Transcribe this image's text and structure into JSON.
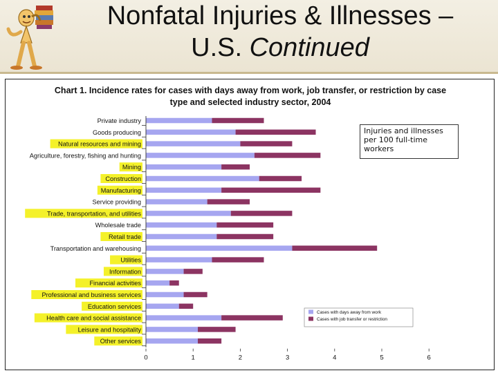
{
  "slide": {
    "title_main": "Nonfatal Injuries & Illnesses –",
    "title_line2_plain": "U.S.",
    "title_line2_italic": "Continued"
  },
  "annotation": "Injuries and illnesses per 100 full-time workers",
  "colors": {
    "bar_away": "#a6a6f0",
    "bar_transfer": "#8c3462",
    "highlight": "#f4f12a"
  },
  "chart_data": {
    "type": "bar",
    "orientation": "horizontal",
    "stacked": true,
    "title": "Chart 1. Incidence rates for cases with days away from work, job transfer, or restriction by case type and selected industry sector, 2004",
    "categories": [
      "Private industry",
      "Goods producing",
      "Natural resources and mining",
      "Agriculture, forestry, fishing and hunting",
      "Mining",
      "Construction",
      "Manufacturing",
      "Service providing",
      "Trade, transportation, and utilities",
      "Wholesale trade",
      "Retail trade",
      "Transportation and warehousing",
      "Utilities",
      "Information",
      "Financial activities",
      "Professional and business services",
      "Education services",
      "Health care and social assistance",
      "Leisure and hospitality",
      "Other services"
    ],
    "highlighted": [
      false,
      false,
      true,
      false,
      true,
      true,
      true,
      false,
      true,
      false,
      true,
      false,
      true,
      true,
      true,
      true,
      true,
      true,
      true,
      true
    ],
    "series": [
      {
        "name": "Cases with days away from work",
        "values": [
          1.4,
          1.9,
          2.0,
          2.3,
          1.6,
          2.4,
          1.6,
          1.3,
          1.8,
          1.5,
          1.5,
          3.1,
          1.4,
          0.8,
          0.5,
          0.8,
          0.7,
          1.6,
          1.1,
          1.1
        ]
      },
      {
        "name": "Cases with job transfer or restriction",
        "values": [
          1.1,
          1.7,
          1.1,
          1.4,
          0.6,
          0.9,
          2.1,
          0.9,
          1.3,
          1.2,
          1.2,
          1.8,
          1.1,
          0.4,
          0.2,
          0.5,
          0.3,
          1.3,
          0.8,
          0.5
        ]
      }
    ],
    "xticks": [
      "0",
      "1",
      "2",
      "3",
      "4",
      "5",
      "6"
    ],
    "xlim": [
      0,
      6
    ]
  }
}
